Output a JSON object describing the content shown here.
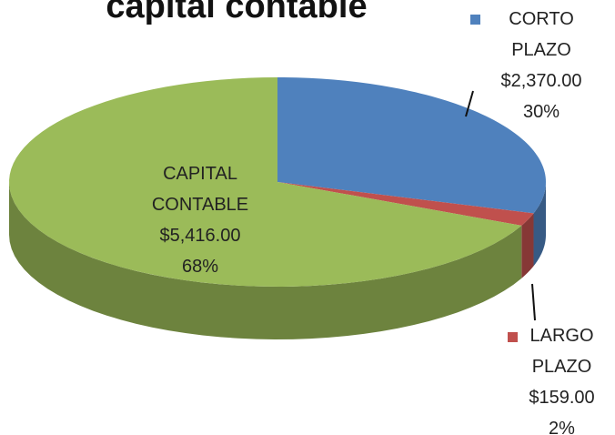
{
  "chart_data": {
    "type": "pie",
    "title": "capital contable",
    "categories": [
      "CORTO PLAZO",
      "LARGO PLAZO",
      "CAPITAL CONTABLE"
    ],
    "values": [
      2370,
      159,
      5416
    ],
    "value_labels": [
      "$2,370.00",
      "$159.00",
      "$5,416.00"
    ],
    "percent_labels": [
      "30%",
      "2%",
      "68%"
    ],
    "colors": [
      "#4f81bd",
      "#c0504d",
      "#9bbb59"
    ]
  }
}
